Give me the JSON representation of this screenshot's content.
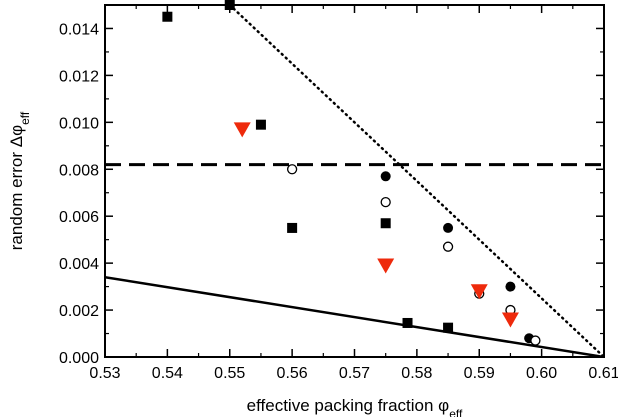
{
  "chart_data": {
    "type": "scatter",
    "xlabel": {
      "main": "effective packing fraction φ",
      "sub": "eff"
    },
    "ylabel": {
      "main": "random error Δφ",
      "sub": "eff"
    },
    "xlim": [
      0.53,
      0.61
    ],
    "ylim": [
      0.0,
      0.015
    ],
    "xticks": [
      "0.53",
      "0.54",
      "0.55",
      "0.56",
      "0.57",
      "0.58",
      "0.59",
      "0.60",
      "0.61"
    ],
    "yticks": [
      "0.000",
      "0.002",
      "0.004",
      "0.006",
      "0.008",
      "0.010",
      "0.012",
      "0.014"
    ],
    "grid": false,
    "series": [
      {
        "marker": "filled-square",
        "color": "#000000",
        "points": [
          [
            0.54,
            0.0145
          ],
          [
            0.55,
            0.015
          ],
          [
            0.555,
            0.0099
          ],
          [
            0.56,
            0.0055
          ],
          [
            0.575,
            0.0057
          ],
          [
            0.5785,
            0.00145
          ],
          [
            0.585,
            0.00125
          ]
        ]
      },
      {
        "marker": "filled-circle",
        "color": "#000000",
        "points": [
          [
            0.575,
            0.0077
          ],
          [
            0.585,
            0.0055
          ],
          [
            0.595,
            0.003
          ],
          [
            0.598,
            0.0008
          ]
        ]
      },
      {
        "marker": "open-circle",
        "color": "#000000",
        "points": [
          [
            0.56,
            0.008
          ],
          [
            0.575,
            0.0066
          ],
          [
            0.585,
            0.0047
          ],
          [
            0.59,
            0.0027
          ],
          [
            0.595,
            0.002
          ],
          [
            0.599,
            0.0007
          ]
        ]
      },
      {
        "marker": "triangle-down",
        "color": "#ee2a0c",
        "points": [
          [
            0.552,
            0.0097
          ],
          [
            0.575,
            0.0039
          ],
          [
            0.59,
            0.0028
          ],
          [
            0.595,
            0.0016
          ]
        ]
      }
    ],
    "reference_lines": [
      {
        "style": "dashed",
        "points": [
          [
            0.53,
            0.0082
          ],
          [
            0.61,
            0.0082
          ]
        ]
      },
      {
        "style": "dotted",
        "points": [
          [
            0.55,
            0.015
          ],
          [
            0.61,
            0.0
          ]
        ]
      },
      {
        "style": "solid",
        "points": [
          [
            0.53,
            0.0034
          ],
          [
            0.61,
            0.0
          ]
        ]
      }
    ]
  }
}
